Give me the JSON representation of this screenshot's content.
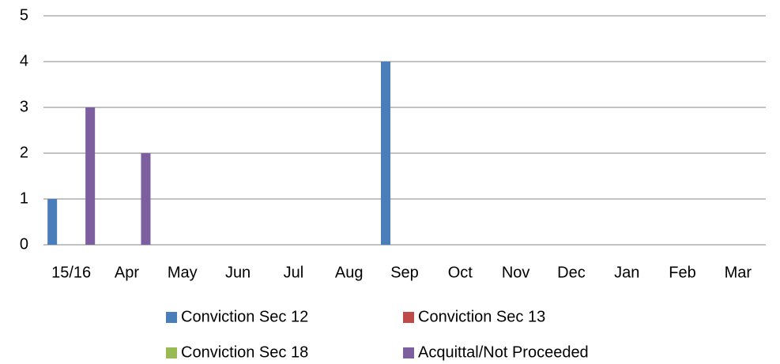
{
  "chart_data": {
    "type": "bar",
    "categories": [
      "15/16",
      "Apr",
      "May",
      "Jun",
      "Jul",
      "Aug",
      "Sep",
      "Oct",
      "Nov",
      "Dec",
      "Jan",
      "Feb",
      "Mar"
    ],
    "series": [
      {
        "name": "Conviction Sec 12",
        "color": "#4a7ebb",
        "values": [
          1,
          0,
          0,
          0,
          0,
          0,
          4,
          0,
          0,
          0,
          0,
          0,
          0
        ]
      },
      {
        "name": "Conviction Sec 13",
        "color": "#be4b48",
        "values": [
          0,
          0,
          0,
          0,
          0,
          0,
          0,
          0,
          0,
          0,
          0,
          0,
          0
        ]
      },
      {
        "name": "Conviction Sec 18",
        "color": "#98b954",
        "values": [
          0,
          0,
          0,
          0,
          0,
          0,
          0,
          0,
          0,
          0,
          0,
          0,
          0
        ]
      },
      {
        "name": "Acquittal/Not Proceeded",
        "color": "#7d5fa0",
        "values": [
          3,
          2,
          0,
          0,
          0,
          0,
          0,
          0,
          0,
          0,
          0,
          0,
          0
        ]
      }
    ],
    "ylim": [
      0,
      5
    ],
    "yticks": [
      0,
      1,
      2,
      3,
      4,
      5
    ],
    "grid": true,
    "legend": "bottom"
  }
}
